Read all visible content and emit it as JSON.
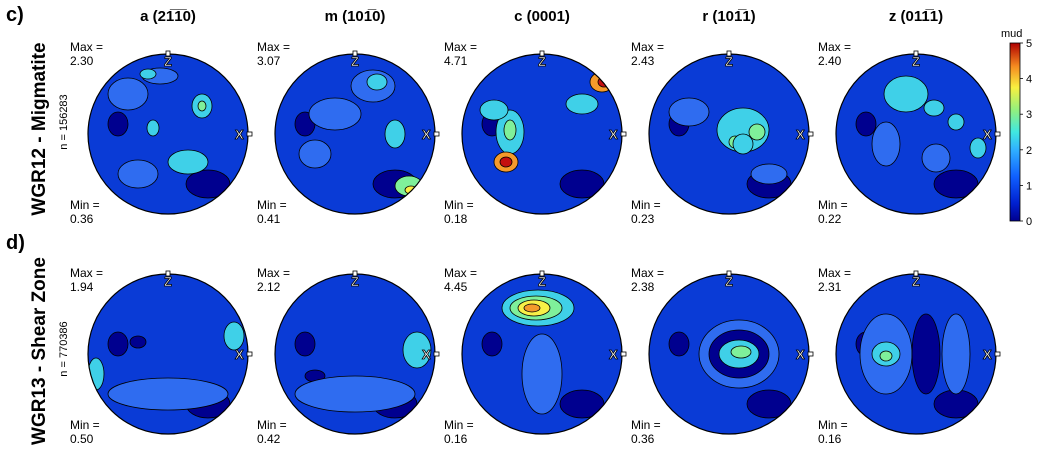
{
  "panel_labels": [
    "c)",
    "d)"
  ],
  "column_titles": [
    "a (2̅1̅100)",
    "m (101̅0)",
    "c (0001)",
    "r (101̅1)",
    "z (011̅1)"
  ],
  "axis_markers": {
    "z": "Z",
    "x": "X"
  },
  "colors": {
    "low": "#00008f",
    "mid_low": "#0a3bd6",
    "mid": "#2f6cf0",
    "cyan": "#3fd0e8",
    "green": "#7ff09a",
    "yellow": "#f8f047",
    "orange": "#f59a2b",
    "red": "#c40f0f"
  },
  "colorbar": {
    "title": "mud",
    "ticks": [
      "0",
      "1",
      "2",
      "3",
      "4",
      "5"
    ]
  },
  "chart_data": [
    {
      "type": "heatmap",
      "row": "WGR12 - Migmatite",
      "n_label": "n = 156283",
      "panel": "c)",
      "plots": [
        {
          "title": "a (21̅1̅0)",
          "max_label": "Max =",
          "max": "2.30",
          "min_label": "Min =",
          "min": "0.36"
        },
        {
          "title": "m (101̅0)",
          "max_label": "Max =",
          "max": "3.07",
          "min_label": "Min =",
          "min": "0.41"
        },
        {
          "title": "c (0001)",
          "max_label": "Max =",
          "max": "4.71",
          "min_label": "Min =",
          "min": "0.18"
        },
        {
          "title": "r (101̅1)",
          "max_label": "Max =",
          "max": "2.43",
          "min_label": "Min =",
          "min": "0.23"
        },
        {
          "title": "z (011̅1)",
          "max_label": "Max =",
          "max": "2.40",
          "min_label": "Min =",
          "min": "0.22"
        }
      ],
      "colorbar_range": [
        0,
        5
      ]
    },
    {
      "type": "heatmap",
      "row": "WGR13 - Shear Zone",
      "n_label": "n = 770386",
      "panel": "d)",
      "plots": [
        {
          "title": "a (21̅1̅0)",
          "max_label": "Max =",
          "max": "1.94",
          "min_label": "Min =",
          "min": "0.50"
        },
        {
          "title": "m (101̅0)",
          "max_label": "Max =",
          "max": "2.12",
          "min_label": "Min =",
          "min": "0.42"
        },
        {
          "title": "c (0001)",
          "max_label": "Max =",
          "max": "4.45",
          "min_label": "Min =",
          "min": "0.16"
        },
        {
          "title": "r (101̅1)",
          "max_label": "Max =",
          "max": "2.38",
          "min_label": "Min =",
          "min": "0.36"
        },
        {
          "title": "z (011̅1)",
          "max_label": "Max =",
          "max": "2.31",
          "min_label": "Min =",
          "min": "0.16"
        }
      ],
      "colorbar_range": [
        0,
        5
      ]
    }
  ]
}
